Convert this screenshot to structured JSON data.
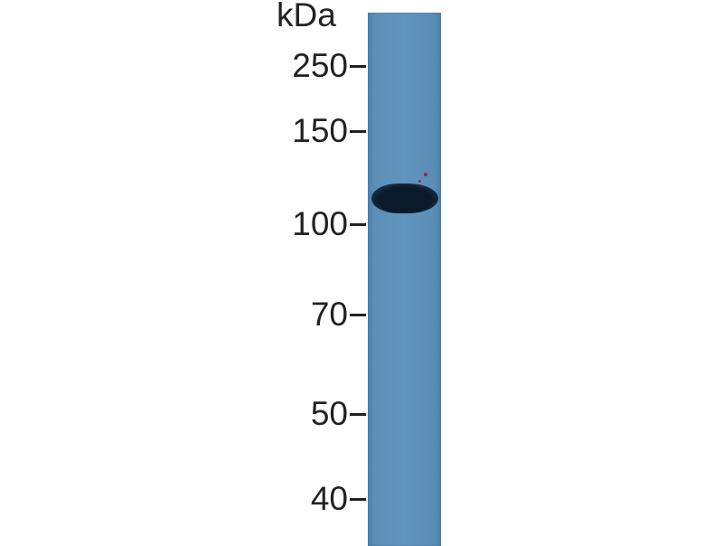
{
  "unit_label": "kDa",
  "markers": [
    "250",
    "150",
    "100",
    "70",
    "50",
    "40"
  ],
  "colors": {
    "membrane": "#5b8eb7",
    "band": "#0b1a28",
    "text": "#222222"
  }
}
